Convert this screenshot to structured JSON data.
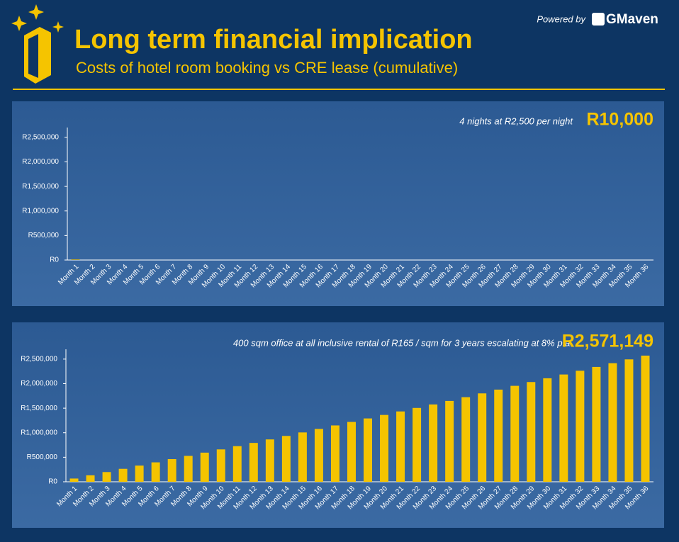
{
  "header": {
    "title": "Long term financial implication",
    "subtitle": "Costs of hotel room booking vs CRE lease (cumulative)",
    "powered_by": "Powered by",
    "brand": "GMaven"
  },
  "chart_data": [
    {
      "type": "bar",
      "annotation": "4 nights at R2,500 per night",
      "total_label": "R10,000",
      "color": "#f5c400",
      "categories": [
        "Month 1",
        "Month 2",
        "Month 3",
        "Month 4",
        "Month 5",
        "Month 6",
        "Month 7",
        "Month 8",
        "Month 9",
        "Month 10",
        "Month 11",
        "Month 12",
        "Month 13",
        "Month 14",
        "Month 15",
        "Month 16",
        "Month 17",
        "Month 18",
        "Month 19",
        "Month 20",
        "Month 21",
        "Month 22",
        "Month 23",
        "Month 24",
        "Month 25",
        "Month 26",
        "Month 27",
        "Month 28",
        "Month 29",
        "Month 30",
        "Month 31",
        "Month 32",
        "Month 33",
        "Month 34",
        "Month 35",
        "Month 36"
      ],
      "values": [
        10000,
        0,
        0,
        0,
        0,
        0,
        0,
        0,
        0,
        0,
        0,
        0,
        0,
        0,
        0,
        0,
        0,
        0,
        0,
        0,
        0,
        0,
        0,
        0,
        0,
        0,
        0,
        0,
        0,
        0,
        0,
        0,
        0,
        0,
        0,
        0
      ],
      "ylim": [
        0,
        2700000
      ],
      "yticks": [
        {
          "value": 0,
          "label": "R0"
        },
        {
          "value": 500000,
          "label": "R500,000"
        },
        {
          "value": 1000000,
          "label": "R1,000,000"
        },
        {
          "value": 1500000,
          "label": "R1,500,000"
        },
        {
          "value": 2000000,
          "label": "R2,000,000"
        },
        {
          "value": 2500000,
          "label": "R2,500,000"
        }
      ]
    },
    {
      "type": "bar",
      "annotation": "400 sqm office at all inclusive rental of R165 / sqm for 3 years escalating at 8% p.a.",
      "total_label": "R2,571,149",
      "color": "#f5c400",
      "categories": [
        "Month 1",
        "Month 2",
        "Month 3",
        "Month 4",
        "Month 5",
        "Month 6",
        "Month 7",
        "Month 8",
        "Month 9",
        "Month 10",
        "Month 11",
        "Month 12",
        "Month 13",
        "Month 14",
        "Month 15",
        "Month 16",
        "Month 17",
        "Month 18",
        "Month 19",
        "Month 20",
        "Month 21",
        "Month 22",
        "Month 23",
        "Month 24",
        "Month 25",
        "Month 26",
        "Month 27",
        "Month 28",
        "Month 29",
        "Month 30",
        "Month 31",
        "Month 32",
        "Month 33",
        "Month 34",
        "Month 35",
        "Month 36"
      ],
      "values": [
        66000,
        132000,
        198000,
        264000,
        330000,
        396000,
        462000,
        528000,
        594000,
        660000,
        726000,
        792000,
        863280,
        934560,
        1005840,
        1077120,
        1148400,
        1219680,
        1290960,
        1362240,
        1433520,
        1504800,
        1576080,
        1647360,
        1724342.4,
        1801324.8,
        1878307.2,
        1955289.6,
        2032272,
        2109254.4,
        2186236.8,
        2263219.2,
        2340201.6,
        2417184,
        2494166.4,
        2571148.8
      ],
      "ylim": [
        0,
        2700000
      ],
      "yticks": [
        {
          "value": 0,
          "label": "R0"
        },
        {
          "value": 500000,
          "label": "R500,000"
        },
        {
          "value": 1000000,
          "label": "R1,000,000"
        },
        {
          "value": 1500000,
          "label": "R1,500,000"
        },
        {
          "value": 2000000,
          "label": "R2,000,000"
        },
        {
          "value": 2500000,
          "label": "R2,500,000"
        }
      ]
    }
  ]
}
